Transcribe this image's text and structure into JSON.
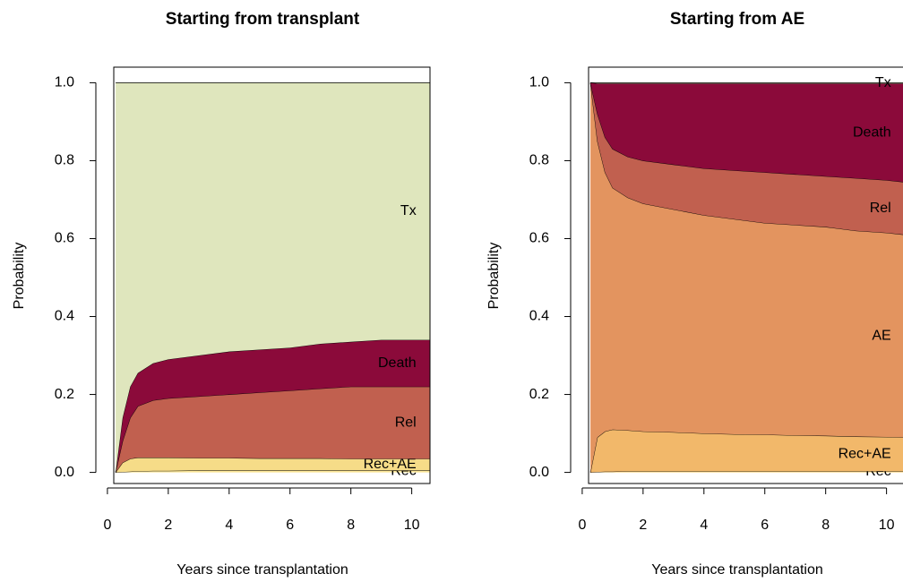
{
  "chart_data": [
    {
      "type": "stacked_area",
      "title": "Starting from transplant",
      "x_label": "Years since transplantation",
      "y_label": "Probability",
      "x": [
        0.27,
        0.5,
        0.75,
        1,
        1.5,
        2,
        3,
        4,
        5,
        6,
        7,
        8,
        9,
        10,
        10.6
      ],
      "series": [
        {
          "name": "Rec",
          "color": "#f9e597",
          "values": [
            0,
            0.001,
            0.002,
            0.003,
            0.004,
            0.004,
            0.005,
            0.005,
            0.005,
            0.005,
            0.005,
            0.005,
            0.005,
            0.005,
            0.005
          ]
        },
        {
          "name": "Rec+AE",
          "color": "#f6dc88",
          "values": [
            0,
            0.024,
            0.033,
            0.035,
            0.034,
            0.034,
            0.032,
            0.032,
            0.031,
            0.031,
            0.031,
            0.03,
            0.03,
            0.03,
            0.03
          ]
        },
        {
          "name": "Rel",
          "color": "#c1604f",
          "values": [
            0,
            0.055,
            0.105,
            0.132,
            0.147,
            0.152,
            0.158,
            0.163,
            0.169,
            0.174,
            0.179,
            0.185,
            0.185,
            0.185,
            0.185
          ]
        },
        {
          "name": "Death",
          "color": "#8b0a3a",
          "values": [
            0,
            0.06,
            0.08,
            0.085,
            0.095,
            0.1,
            0.105,
            0.11,
            0.11,
            0.11,
            0.115,
            0.115,
            0.12,
            0.12,
            0.12
          ]
        },
        {
          "name": "Tx",
          "color": "#dfe6bd",
          "values": [
            1,
            0.86,
            0.78,
            0.745,
            0.72,
            0.71,
            0.7,
            0.69,
            0.685,
            0.68,
            0.67,
            0.665,
            0.66,
            0.66,
            0.66
          ]
        }
      ],
      "xlim": [
        -0.38,
        10.6
      ],
      "ylim": [
        -0.04,
        1.04
      ],
      "xticks": [
        0,
        2,
        4,
        6,
        8,
        10
      ],
      "yticks": [
        {
          "value": 0,
          "label": "0.0"
        },
        0.2,
        0.4,
        0.6,
        0.8,
        {
          "value": 1,
          "label": "1.0"
        }
      ]
    },
    {
      "type": "stacked_area",
      "title": "Starting from AE",
      "x_label": "Years since transplantation",
      "y_label": "Probability",
      "x": [
        0.27,
        0.5,
        0.75,
        1,
        1.5,
        2,
        3,
        4,
        5,
        6,
        7,
        8,
        9,
        10,
        10.6
      ],
      "series": [
        {
          "name": "Rec",
          "color": "#f6d27d",
          "values": [
            0,
            0.001,
            0.002,
            0.002,
            0.003,
            0.003,
            0.003,
            0.003,
            0.003,
            0.003,
            0.003,
            0.003,
            0.003,
            0.003,
            0.003
          ]
        },
        {
          "name": "Rec+AE",
          "color": "#f2b86a",
          "values": [
            0,
            0.089,
            0.103,
            0.108,
            0.105,
            0.102,
            0.1,
            0.097,
            0.095,
            0.094,
            0.092,
            0.091,
            0.089,
            0.088,
            0.087
          ]
        },
        {
          "name": "AE",
          "color": "#e3945f",
          "values": [
            1,
            0.76,
            0.665,
            0.62,
            0.597,
            0.585,
            0.572,
            0.56,
            0.552,
            0.543,
            0.54,
            0.536,
            0.528,
            0.524,
            0.52
          ]
        },
        {
          "name": "Rel",
          "color": "#c1604f",
          "values": [
            0,
            0.07,
            0.09,
            0.1,
            0.105,
            0.11,
            0.115,
            0.12,
            0.125,
            0.13,
            0.13,
            0.13,
            0.135,
            0.135,
            0.135
          ]
        },
        {
          "name": "Death",
          "color": "#8b0a3a",
          "values": [
            0,
            0.078,
            0.138,
            0.168,
            0.188,
            0.198,
            0.208,
            0.218,
            0.223,
            0.228,
            0.233,
            0.238,
            0.243,
            0.248,
            0.253
          ]
        },
        {
          "name": "Tx",
          "color": "#dfe6bd",
          "values": [
            0,
            0.002,
            0.002,
            0.002,
            0.002,
            0.002,
            0.002,
            0.002,
            0.002,
            0.002,
            0.002,
            0.002,
            0.002,
            0.002,
            0.002
          ]
        }
      ],
      "xlim": [
        -0.38,
        10.6
      ],
      "ylim": [
        -0.04,
        1.04
      ],
      "xticks": [
        0,
        2,
        4,
        6,
        8,
        10
      ],
      "yticks": [
        {
          "value": 0,
          "label": "0.0"
        },
        0.2,
        0.4,
        0.6,
        0.8,
        {
          "value": 1,
          "label": "1.0"
        }
      ]
    }
  ]
}
